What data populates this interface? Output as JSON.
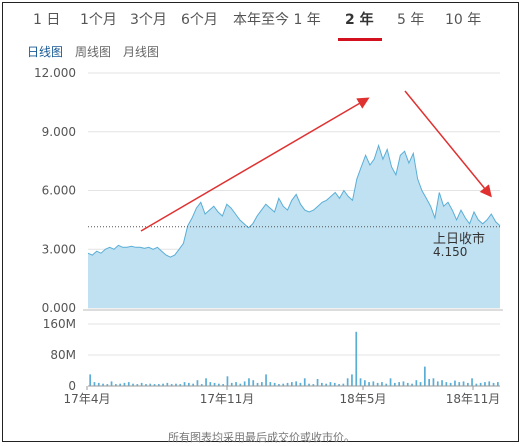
{
  "range_tabs": [
    {
      "label": "1 日"
    },
    {
      "label": "1个月"
    },
    {
      "label": "3个月"
    },
    {
      "label": "6个月"
    },
    {
      "label": "本年至今 1 年"
    },
    {
      "label": "2 年",
      "active": true
    },
    {
      "label": "5 年"
    },
    {
      "label": "10 年"
    }
  ],
  "view_tabs": [
    {
      "label": "日线图",
      "active": true
    },
    {
      "label": "周线图"
    },
    {
      "label": "月线图"
    }
  ],
  "footer_note": "所有图表均采用最后成交价或收市价。",
  "colors": {
    "area_fill": "#bfe1f2",
    "area_line": "#5aaed6",
    "volume_bar": "#5aaed6",
    "arrow": "#e03131",
    "accent": "#d3101d"
  },
  "chart_data": [
    {
      "type": "area",
      "y_ticks": [
        "12.000",
        "9.000",
        "6.000",
        "3.000",
        "0.000"
      ],
      "ylim": [
        0,
        12
      ],
      "x_ticks": [
        "17年4月",
        "17年11月",
        "18年5月",
        "18年11月"
      ],
      "x_range": [
        "2017-03",
        "2018-12"
      ],
      "reference_line": {
        "value": 4.15,
        "style": "dotted",
        "label": "上日收市",
        "value_label": "4.150"
      },
      "series": [
        {
          "values": [
            2.8,
            2.7,
            2.9,
            2.8,
            3.0,
            3.1,
            3.0,
            3.2,
            3.1,
            3.1,
            3.15,
            3.1,
            3.1,
            3.05,
            3.1,
            3.0,
            3.1,
            2.9,
            2.7,
            2.6,
            2.7,
            3.0,
            3.3,
            4.2,
            4.6,
            5.1,
            5.4,
            4.8,
            5.0,
            5.2,
            4.9,
            4.7,
            5.3,
            5.1,
            4.8,
            4.5,
            4.3,
            4.1,
            4.3,
            4.7,
            5.0,
            5.3,
            5.1,
            4.9,
            5.6,
            5.2,
            5.0,
            5.5,
            5.8,
            5.3,
            5.0,
            4.9,
            5.0,
            5.2,
            5.4,
            5.5,
            5.7,
            5.9,
            5.6,
            6.0,
            5.7,
            5.5,
            6.6,
            7.2,
            7.8,
            7.3,
            7.6,
            8.3,
            7.6,
            8.1,
            7.2,
            6.8,
            7.8,
            8.0,
            7.4,
            7.9,
            6.6,
            6.0,
            5.6,
            5.2,
            4.6,
            5.9,
            5.2,
            5.4,
            5.0,
            4.5,
            5.0,
            4.6,
            4.3,
            4.9,
            4.5,
            4.3,
            4.5,
            4.8,
            4.4,
            4.2
          ]
        }
      ],
      "annotations": [
        {
          "type": "arrow",
          "direction": "up"
        },
        {
          "type": "arrow",
          "direction": "down"
        }
      ],
      "grid": "horizontal"
    },
    {
      "type": "bar",
      "y_ticks": [
        "160M",
        "80M",
        "0"
      ],
      "ylim": [
        0,
        160
      ],
      "series": [
        {
          "values": [
            30,
            10,
            8,
            6,
            5,
            12,
            5,
            6,
            8,
            10,
            6,
            5,
            8,
            5,
            6,
            5,
            5,
            6,
            8,
            5,
            6,
            5,
            10,
            8,
            6,
            15,
            5,
            20,
            10,
            8,
            6,
            5,
            25,
            8,
            10,
            6,
            12,
            20,
            15,
            8,
            10,
            30,
            10,
            8,
            5,
            6,
            8,
            10,
            12,
            8,
            20,
            6,
            5,
            18,
            8,
            6,
            10,
            8,
            5,
            6,
            20,
            30,
            140,
            20,
            15,
            10,
            12,
            8,
            10,
            6,
            20,
            8,
            10,
            12,
            8,
            6,
            15,
            10,
            50,
            18,
            20,
            12,
            15,
            10,
            8,
            14,
            10,
            12,
            8,
            20,
            6,
            8,
            10,
            12,
            8,
            10
          ]
        }
      ]
    }
  ]
}
